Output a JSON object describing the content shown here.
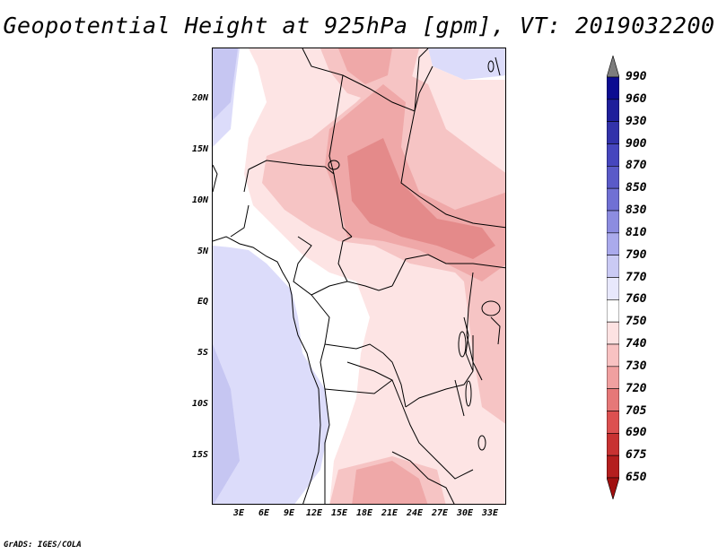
{
  "title": "Geopotential Height at 925hPa [gpm], VT: 2019032200",
  "credit": "GrADS: IGES/COLA",
  "axes": {
    "lat_labels": [
      "20N",
      "15N",
      "10N",
      "5N",
      "EQ",
      "5S",
      "10S",
      "15S"
    ],
    "lon_labels": [
      "3E",
      "6E",
      "9E",
      "12E",
      "15E",
      "18E",
      "21E",
      "24E",
      "27E",
      "30E",
      "33E"
    ]
  },
  "colorbar": {
    "levels": [
      "990",
      "960",
      "930",
      "900",
      "870",
      "850",
      "830",
      "810",
      "790",
      "770",
      "760",
      "750",
      "740",
      "730",
      "720",
      "705",
      "690",
      "675",
      "650"
    ],
    "colors": [
      "#7d7d7d",
      "#0c0c91",
      "#1e1e9b",
      "#3232aa",
      "#4646be",
      "#5a5ac8",
      "#7070d4",
      "#8c8ce0",
      "#aaaaec",
      "#cacaf4",
      "#e8e8fc",
      "#ffffff",
      "#fde2e2",
      "#f8c2c2",
      "#f0a0a0",
      "#e67878",
      "#dc5050",
      "#c83232",
      "#b41e1e",
      "#a01010"
    ]
  },
  "map_colors": {
    "ocean_far": "#c6c6f2",
    "ocean": "#dcdcfa",
    "land_low": "#ffffff",
    "land_light": "#fde4e4",
    "land_mid": "#f6c4c4",
    "land_high": "#efa8a8",
    "land_core": "#e48a8a"
  }
}
